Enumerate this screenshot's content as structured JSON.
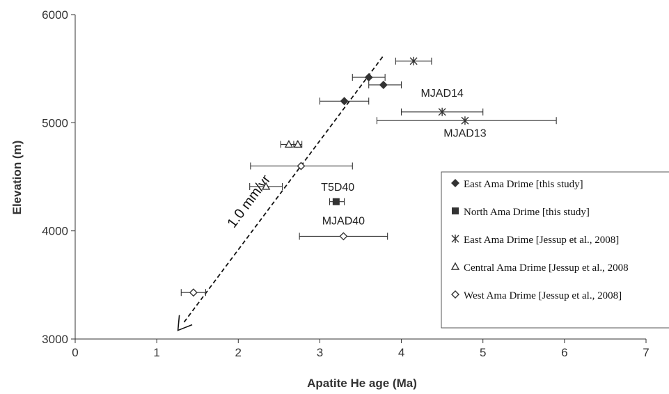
{
  "chart_data": {
    "type": "scatter",
    "xlabel": "Apatite He age (Ma)",
    "ylabel": "Elevation (m)",
    "xlim": [
      0,
      7
    ],
    "ylim": [
      3000,
      6000
    ],
    "x_ticks": [
      "0",
      "1",
      "2",
      "3",
      "4",
      "5",
      "6",
      "7"
    ],
    "y_ticks": [
      "3000",
      "4000",
      "5000",
      "6000"
    ],
    "grid": false,
    "legend_position": "right",
    "series": [
      {
        "name": "East Ama Drime [this study]",
        "marker": "diamond-filled",
        "points": [
          {
            "x": 3.6,
            "y": 5420,
            "xerr_low": 3.4,
            "xerr_high": 3.8
          },
          {
            "x": 3.78,
            "y": 5350,
            "xerr_low": 3.6,
            "xerr_high": 4.0
          },
          {
            "x": 3.3,
            "y": 5200,
            "xerr_low": 3.0,
            "xerr_high": 3.6
          }
        ]
      },
      {
        "name": "North Ama Drime [this study]",
        "marker": "square-filled",
        "points": [
          {
            "x": 3.2,
            "y": 4270,
            "xerr_low": 3.12,
            "xerr_high": 3.3
          }
        ]
      },
      {
        "name": "East Ama Drime [Jessup et al., 2008]",
        "marker": "asterisk",
        "points": [
          {
            "x": 4.15,
            "y": 5570,
            "xerr_low": 3.93,
            "xerr_high": 4.37
          },
          {
            "x": 4.5,
            "y": 5100,
            "xerr_low": 4.0,
            "xerr_high": 5.0
          },
          {
            "x": 4.78,
            "y": 5020,
            "xerr_low": 3.7,
            "xerr_high": 5.9
          }
        ]
      },
      {
        "name": "Central Ama Drime [Jessup et al., 2008",
        "marker": "triangle-open",
        "points": [
          {
            "x": 2.62,
            "y": 4800,
            "xerr_low": 2.52,
            "xerr_high": 2.72
          },
          {
            "x": 2.73,
            "y": 4800,
            "xerr_low": 2.68,
            "xerr_high": 2.78
          },
          {
            "x": 2.34,
            "y": 4410,
            "xerr_low": 2.14,
            "xerr_high": 2.54
          }
        ]
      },
      {
        "name": "West Ama Drime [Jessup et al., 2008]",
        "marker": "diamond-open",
        "points": [
          {
            "x": 2.77,
            "y": 4600,
            "xerr_low": 2.15,
            "xerr_high": 3.4
          },
          {
            "x": 3.29,
            "y": 3950,
            "xerr_low": 2.75,
            "xerr_high": 3.83
          },
          {
            "x": 1.45,
            "y": 3430,
            "xerr_low": 1.3,
            "xerr_high": 1.6
          }
        ]
      }
    ],
    "annotations": [
      {
        "text": "MJAD14",
        "x": 4.5,
        "y": 5240
      },
      {
        "text": "MJAD13",
        "x": 4.78,
        "y": 4870
      },
      {
        "text": "T5D40",
        "x": 3.22,
        "y": 4370
      },
      {
        "text": "MJAD40",
        "x": 3.29,
        "y": 4060
      }
    ],
    "trend_line": {
      "label": "1.0 mm/yr",
      "start": {
        "x": 3.77,
        "y": 5610
      },
      "end": {
        "x": 1.26,
        "y": 3080
      }
    }
  }
}
